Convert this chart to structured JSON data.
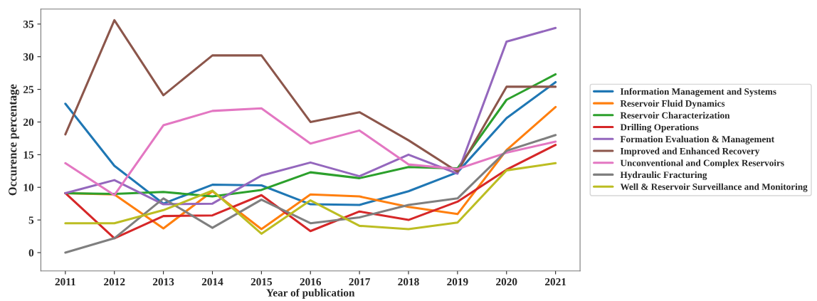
{
  "chart_data": {
    "type": "line",
    "xlabel": "Year of publication",
    "ylabel": "Occurence percentage",
    "x": [
      2011,
      2012,
      2013,
      2014,
      2015,
      2016,
      2017,
      2018,
      2019,
      2020,
      2021
    ],
    "xlim": [
      2010.5,
      2021.5
    ],
    "xticks": [
      2011,
      2012,
      2013,
      2014,
      2015,
      2016,
      2017,
      2018,
      2019,
      2020,
      2021
    ],
    "ylim": [
      -2.8,
      37.3
    ],
    "yticks": [
      0,
      5,
      10,
      15,
      20,
      25,
      30,
      35
    ],
    "grid": false,
    "legend": "right",
    "line_style": "solid",
    "series": [
      {
        "name": "Information Management and Systems",
        "color": "#1f77b4",
        "values": [
          22.8,
          13.3,
          7.5,
          10.4,
          10.3,
          7.4,
          7.3,
          9.4,
          12.3,
          20.6,
          26.1
        ]
      },
      {
        "name": "Reservoir Fluid Dynamics",
        "color": "#ff7f0e",
        "values": [
          9.1,
          8.9,
          3.7,
          9.4,
          3.6,
          8.9,
          8.6,
          7.0,
          5.9,
          15.7,
          22.3
        ]
      },
      {
        "name": "Reservoir Characterization",
        "color": "#2ca02c",
        "values": [
          9.1,
          9.0,
          9.3,
          8.6,
          9.6,
          12.3,
          11.4,
          13.1,
          12.9,
          23.4,
          27.3
        ]
      },
      {
        "name": "Drilling Operations",
        "color": "#d62728",
        "values": [
          9.1,
          2.2,
          5.6,
          5.7,
          8.8,
          3.3,
          6.3,
          5.0,
          7.8,
          12.7,
          16.5
        ]
      },
      {
        "name": "Formation Evaluation & Management",
        "color": "#9467bd",
        "values": [
          9.1,
          11.1,
          7.4,
          7.5,
          11.8,
          13.8,
          11.7,
          15.0,
          12.1,
          32.3,
          34.4
        ]
      },
      {
        "name": "Improved and Enhanced Recovery",
        "color": "#8c564b",
        "values": [
          18.1,
          35.6,
          24.1,
          30.2,
          30.2,
          20.0,
          21.5,
          17.2,
          12.4,
          25.4,
          25.4
        ]
      },
      {
        "name": "Unconventional and Complex Reservoirs",
        "color": "#e377c2",
        "values": [
          13.7,
          8.8,
          19.5,
          21.7,
          22.1,
          16.7,
          18.7,
          13.5,
          12.8,
          15.3,
          17.0
        ]
      },
      {
        "name": "Hydraulic Fracturing",
        "color": "#7f7f7f",
        "values": [
          0.0,
          2.2,
          8.3,
          3.8,
          8.1,
          4.5,
          5.4,
          7.3,
          8.3,
          15.6,
          18.0
        ]
      },
      {
        "name": "Well & Reservoir Surveillance and Monitoring",
        "color": "#bcbd22",
        "values": [
          4.5,
          4.5,
          6.5,
          9.5,
          2.9,
          8.0,
          4.1,
          3.6,
          4.6,
          12.6,
          13.7
        ]
      }
    ]
  }
}
